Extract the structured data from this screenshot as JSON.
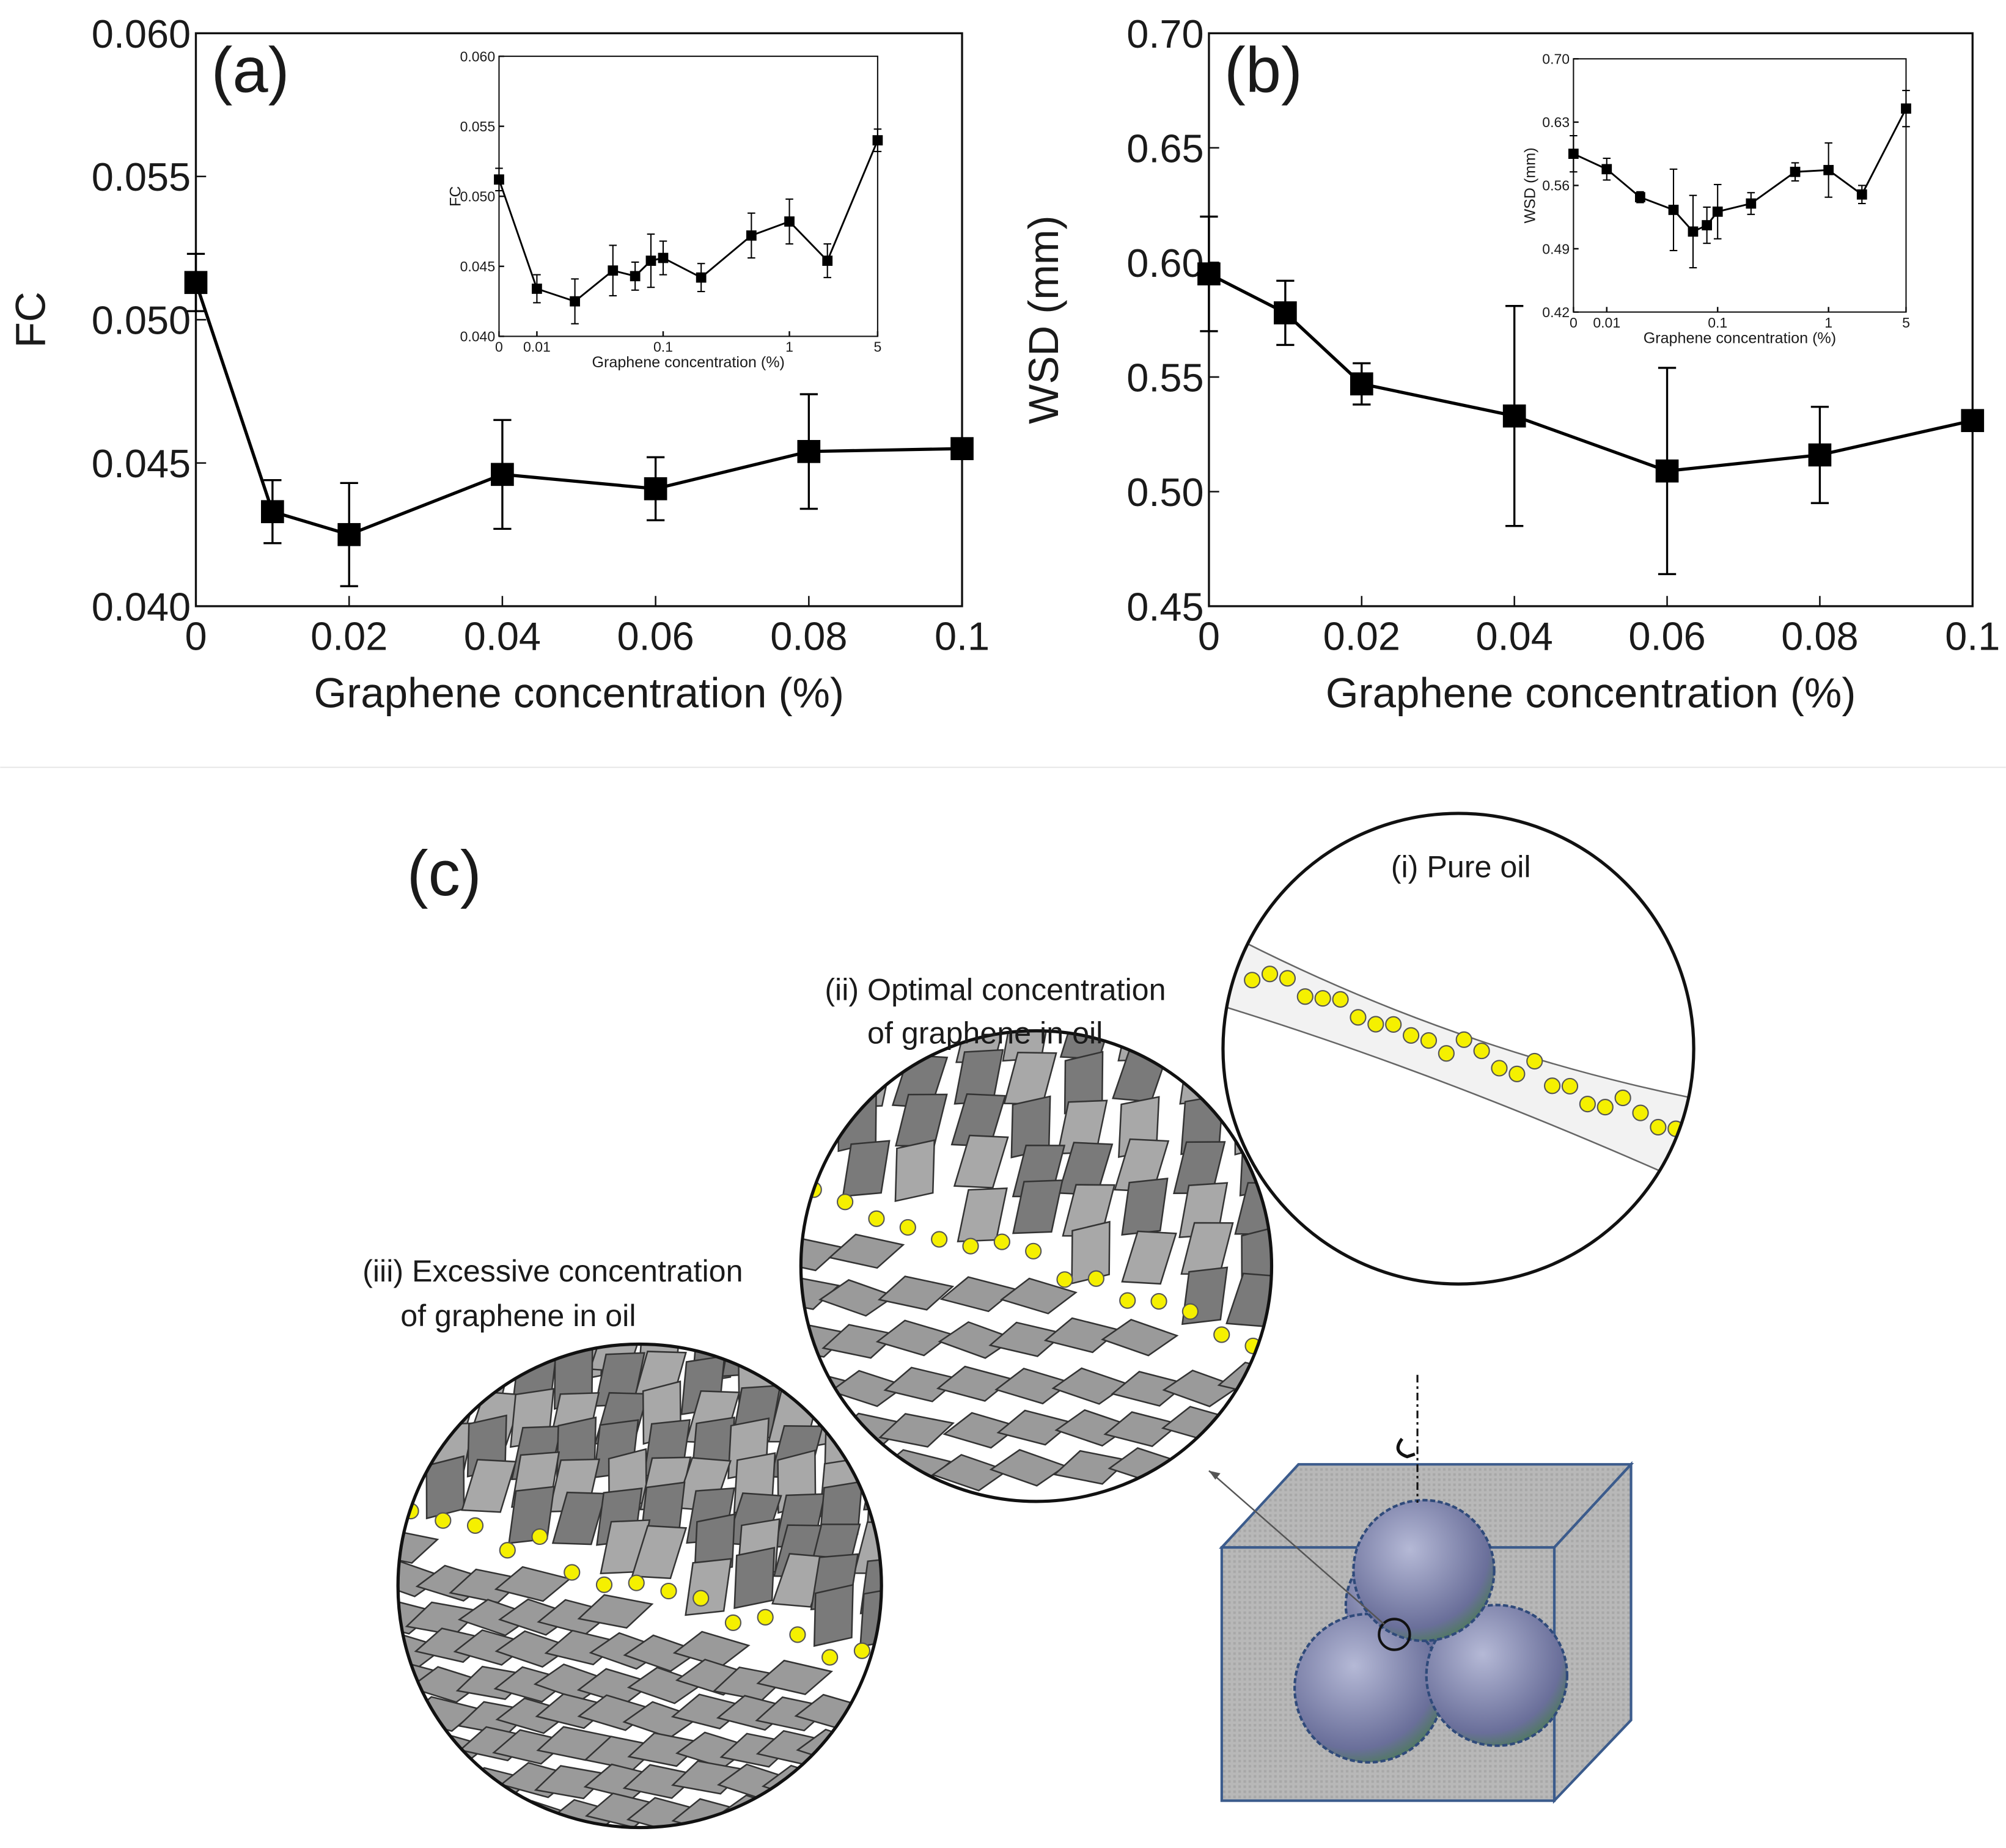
{
  "chart_data": [
    {
      "type": "line",
      "annotation": "(a)",
      "ylabel": "FC",
      "xlabel": "Graphene concentration (%)",
      "x": [
        0,
        0.01,
        0.02,
        0.04,
        0.06,
        0.08,
        0.1
      ],
      "series": [
        {
          "color": "#000000",
          "values": [
            0.0513,
            0.0433,
            0.0425,
            0.0446,
            0.0441,
            0.0454,
            0.0455
          ],
          "errors": [
            0.001,
            0.0011,
            0.0018,
            0.0019,
            0.0011,
            0.002,
            0
          ]
        }
      ],
      "xlim": [
        0,
        0.1
      ],
      "xticks": [
        0,
        0.02,
        0.04,
        0.06,
        0.08,
        0.1
      ],
      "ylim": [
        0.04,
        0.06
      ],
      "yticks": [
        {
          "value": 0.04,
          "label": "0.040"
        },
        0.045,
        {
          "value": 0.05,
          "label": "0.050"
        },
        0.055,
        {
          "value": 0.06,
          "label": "0.060"
        }
      ]
    },
    {
      "type": "line",
      "ylabel": "FC",
      "xlabel": "Graphene concentration (%)",
      "xscale": "log",
      "x": [
        0,
        0.01,
        0.02,
        0.04,
        0.06,
        0.08,
        0.1,
        0.2,
        0.5,
        1,
        2,
        5
      ],
      "series": [
        {
          "color": "#000000",
          "values": [
            0.0512,
            0.0434,
            0.0425,
            0.0447,
            0.0443,
            0.0454,
            0.0456,
            0.0442,
            0.0472,
            0.0482,
            0.0454,
            0.054
          ],
          "errors": [
            0.0008,
            0.001,
            0.0016,
            0.0018,
            0.001,
            0.0019,
            0.0012,
            0.001,
            0.0016,
            0.0016,
            0.0012,
            0.0008
          ]
        }
      ],
      "xlim": [
        0,
        5
      ],
      "xticks": [
        0,
        0.01,
        0.1,
        1,
        5
      ],
      "ylim": [
        0.04,
        0.06
      ],
      "yticks": [
        {
          "value": 0.04,
          "label": "0.040"
        },
        0.045,
        {
          "value": 0.05,
          "label": "0.050"
        },
        0.055,
        {
          "value": 0.06,
          "label": "0.060"
        }
      ]
    },
    {
      "type": "line",
      "annotation": "(b)",
      "ylabel": "WSD (mm)",
      "xlabel": "Graphene concentration (%)",
      "x": [
        0,
        0.01,
        0.02,
        0.04,
        0.06,
        0.08,
        0.1
      ],
      "series": [
        {
          "color": "#000000",
          "values": [
            0.595,
            0.578,
            0.547,
            0.533,
            0.509,
            0.516,
            0.531
          ],
          "errors": [
            0.025,
            0.014,
            0.009,
            0.048,
            0.045,
            0.021,
            0
          ]
        }
      ],
      "xlim": [
        0,
        0.1
      ],
      "xticks": [
        0,
        0.02,
        0.04,
        0.06,
        0.08,
        0.1
      ],
      "ylim": [
        0.45,
        0.7
      ],
      "yticks": [
        0.45,
        {
          "value": 0.5,
          "label": "0.50"
        },
        0.55,
        {
          "value": 0.6,
          "label": "0.60"
        },
        0.65,
        {
          "value": 0.7,
          "label": "0.70"
        }
      ]
    },
    {
      "type": "line",
      "ylabel": "WSD (mm)",
      "xlabel": "Graphene concentration (%)",
      "xscale": "log",
      "x": [
        0,
        0.01,
        0.02,
        0.04,
        0.06,
        0.08,
        0.1,
        0.2,
        0.5,
        1,
        2,
        5
      ],
      "series": [
        {
          "color": "#000000",
          "values": [
            0.595,
            0.578,
            0.547,
            0.533,
            0.509,
            0.516,
            0.531,
            0.54,
            0.575,
            0.577,
            0.55,
            0.645
          ],
          "errors": [
            0.02,
            0.012,
            0.006,
            0.045,
            0.04,
            0.02,
            0.03,
            0.012,
            0.01,
            0.03,
            0.01,
            0.02
          ]
        }
      ],
      "xlim": [
        0,
        5
      ],
      "xticks": [
        0,
        0.01,
        0.1,
        1,
        5
      ],
      "ylim": [
        0.42,
        0.7
      ],
      "yticks": [
        0.42,
        0.49,
        0.56,
        0.63,
        {
          "value": 0.7,
          "label": "0.70"
        }
      ]
    }
  ],
  "diagram": {
    "panel": "(c)",
    "labels": [
      "(i) Pure oil",
      "(ii) Optimal concentration",
      "of graphene in oil",
      "(iii) Excessive concentration",
      "of graphene in oil"
    ]
  }
}
